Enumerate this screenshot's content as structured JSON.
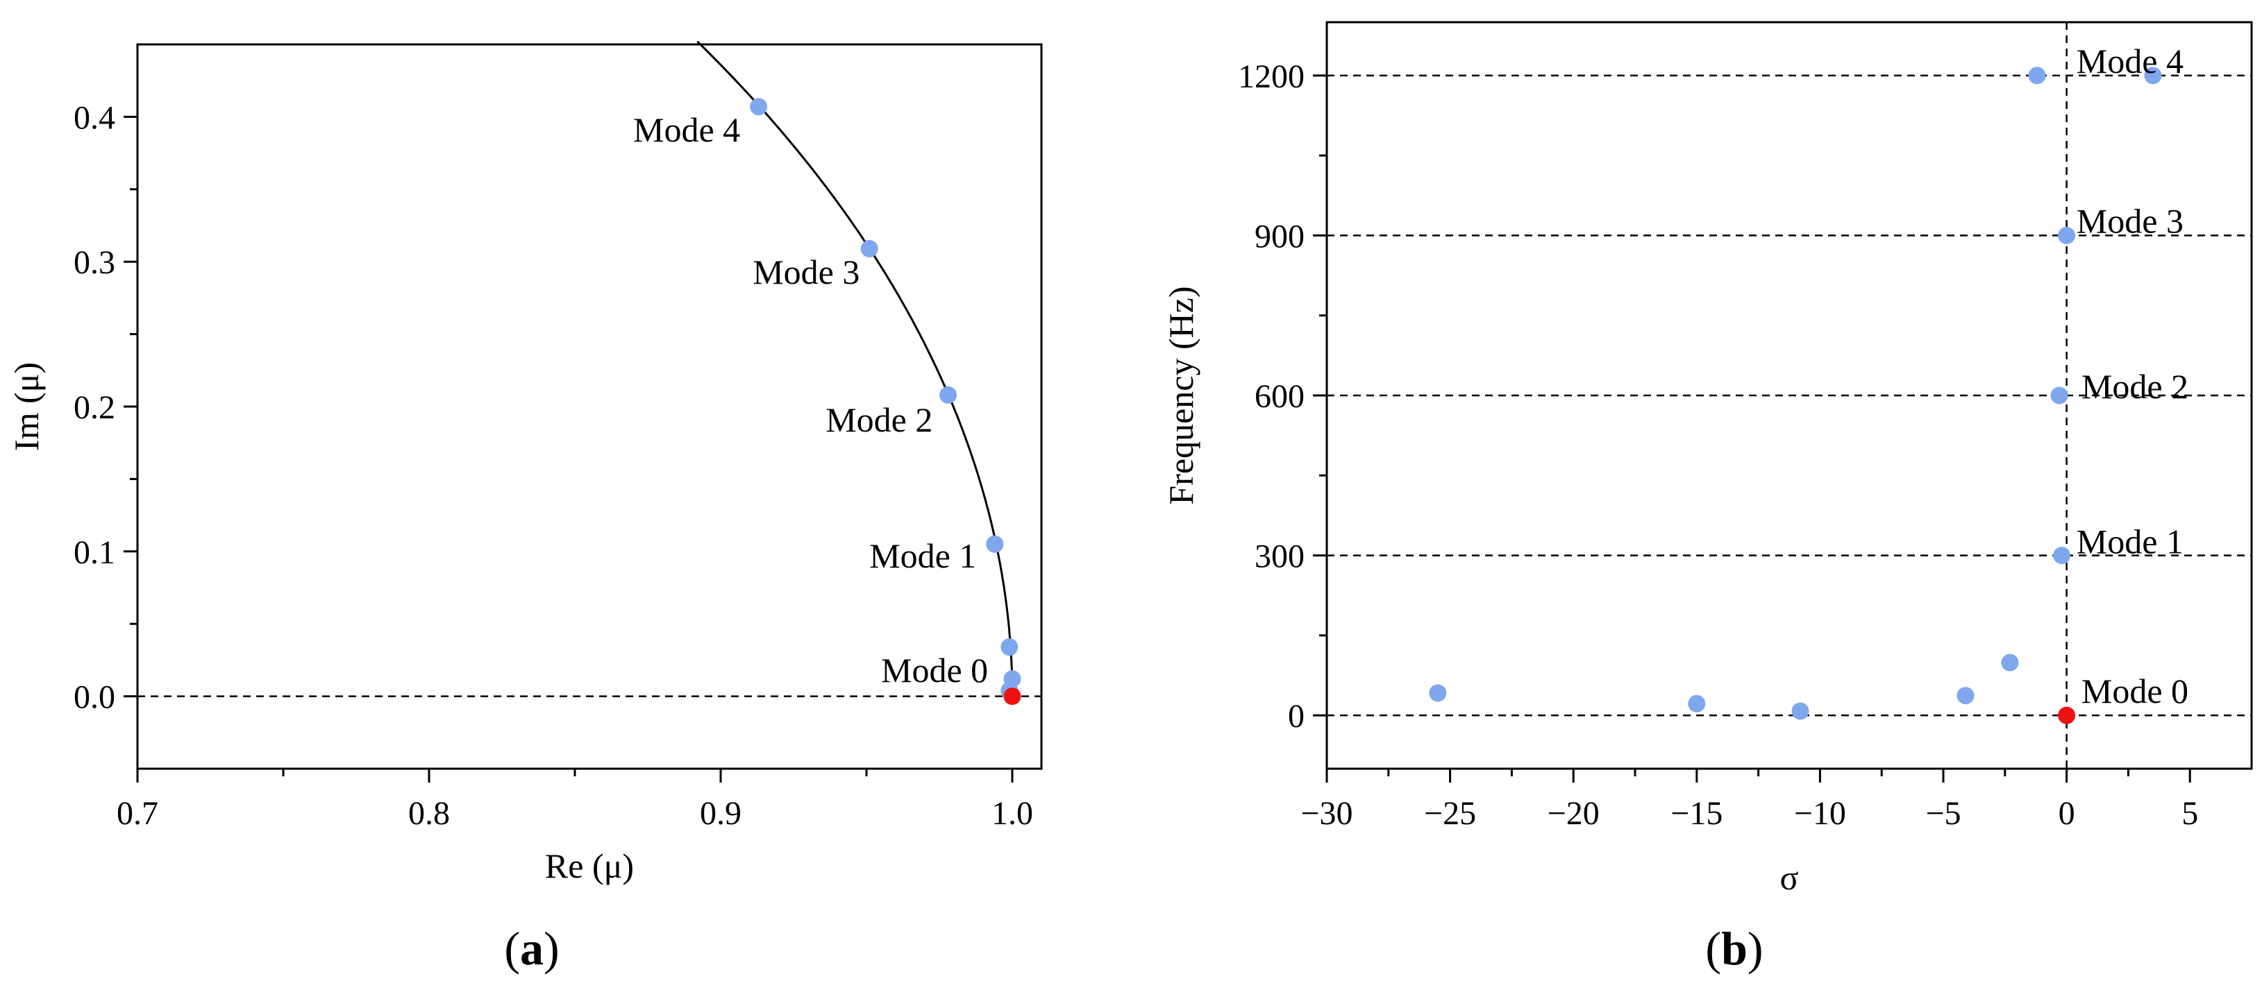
{
  "colors": {
    "point": "#7fa7ee",
    "highlight": "#ee1111",
    "axis": "#000000"
  },
  "panels": [
    {
      "label_open": "(",
      "label_letter": "a",
      "label_close": ")"
    },
    {
      "label_open": "(",
      "label_letter": "b",
      "label_close": ")"
    }
  ],
  "chart_data": [
    {
      "type": "scatter",
      "xlabel": "Re (μ)",
      "ylabel": "Im (μ)",
      "xlim": [
        0.7,
        1.01
      ],
      "ylim": [
        -0.05,
        0.45
      ],
      "xticks": [
        "0.7",
        "0.8",
        "0.9",
        "1.0"
      ],
      "xtick_values": [
        0.7,
        0.8,
        0.9,
        1.0
      ],
      "yticks": [
        "0.0",
        "0.1",
        "0.2",
        "0.3",
        "0.4"
      ],
      "ytick_values": [
        0.0,
        0.1,
        0.2,
        0.3,
        0.4
      ],
      "reference_line": {
        "y": 0.0,
        "style": "dashed"
      },
      "curve": "unit circle arc |μ| = 1",
      "points": [
        {
          "x": 0.913,
          "y": 0.407,
          "color": "point"
        },
        {
          "x": 0.951,
          "y": 0.309,
          "color": "point"
        },
        {
          "x": 0.978,
          "y": 0.208,
          "color": "point"
        },
        {
          "x": 0.994,
          "y": 0.105,
          "color": "point"
        },
        {
          "x": 0.999,
          "y": 0.034,
          "color": "point"
        },
        {
          "x": 1.0,
          "y": 0.012,
          "color": "point"
        },
        {
          "x": 0.999,
          "y": 0.004,
          "color": "point"
        },
        {
          "x": 1.0,
          "y": 0.0,
          "color": "highlight"
        }
      ],
      "annotations": [
        {
          "text": "Mode 4",
          "x": 0.87,
          "y": 0.391
        },
        {
          "text": "Mode 3",
          "x": 0.911,
          "y": 0.293
        },
        {
          "text": "Mode 2",
          "x": 0.936,
          "y": 0.191
        },
        {
          "text": "Mode 1",
          "x": 0.951,
          "y": 0.097
        },
        {
          "text": "Mode 0",
          "x": 0.955,
          "y": 0.018
        }
      ]
    },
    {
      "type": "scatter",
      "xlabel": "σ",
      "ylabel": "Frequency (Hz)",
      "xlim": [
        -30,
        7.5
      ],
      "ylim": [
        -100,
        1300
      ],
      "xticks": [
        "−30",
        "−25",
        "−20",
        "−15",
        "−10",
        "−5",
        "0",
        "5"
      ],
      "xtick_values": [
        -30,
        -25,
        -20,
        -15,
        -10,
        -5,
        0,
        5
      ],
      "yticks": [
        "0",
        "300",
        "600",
        "900",
        "1200"
      ],
      "ytick_values": [
        0,
        300,
        600,
        900,
        1200
      ],
      "grid": {
        "horizontal": "dashed at y ticks",
        "vertical": "dashed at x = 0"
      },
      "points": [
        {
          "x": -25.5,
          "y": 42,
          "color": "point"
        },
        {
          "x": -15.0,
          "y": 22,
          "color": "point"
        },
        {
          "x": -10.8,
          "y": 8,
          "color": "point"
        },
        {
          "x": -4.1,
          "y": 37,
          "color": "point"
        },
        {
          "x": -2.3,
          "y": 99,
          "color": "point"
        },
        {
          "x": -1.2,
          "y": 1200,
          "color": "point"
        },
        {
          "x": 3.5,
          "y": 1200,
          "color": "point"
        },
        {
          "x": 0.0,
          "y": 900,
          "color": "point"
        },
        {
          "x": -0.3,
          "y": 600,
          "color": "point"
        },
        {
          "x": -0.2,
          "y": 300,
          "color": "point"
        },
        {
          "x": 0.0,
          "y": 0,
          "color": "highlight"
        }
      ],
      "annotations": [
        {
          "text": "Mode 4",
          "x": 0.4,
          "y": 1227
        },
        {
          "text": "Mode 3",
          "x": 0.4,
          "y": 927
        },
        {
          "text": "Mode 2",
          "x": 0.6,
          "y": 617
        },
        {
          "text": "Mode 1",
          "x": 0.4,
          "y": 326
        },
        {
          "text": "Mode 0",
          "x": 0.6,
          "y": 46
        }
      ]
    }
  ]
}
